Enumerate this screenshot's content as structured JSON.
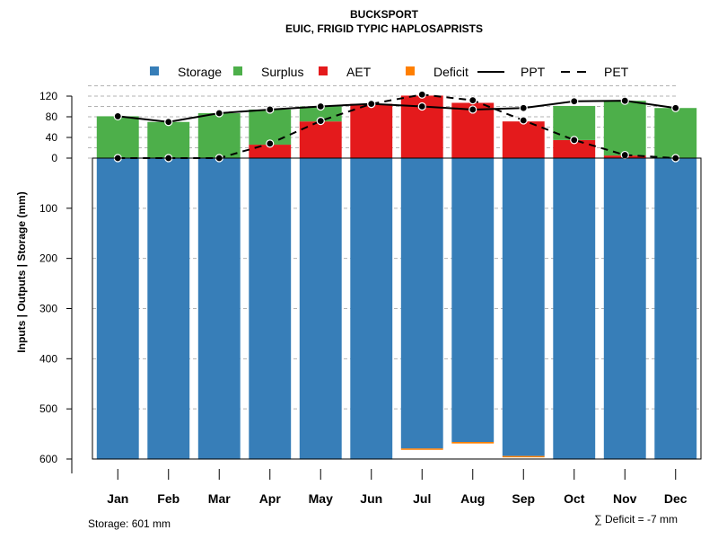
{
  "chart_data": {
    "type": "bar",
    "title": "BUCKSPORT",
    "subtitle": "EUIC, FRIGID TYPIC HAPLOSAPRISTS",
    "ylabel": "Inputs | Outputs | Storage    (mm)",
    "categories": [
      "Jan",
      "Feb",
      "Mar",
      "Apr",
      "May",
      "Jun",
      "Jul",
      "Aug",
      "Sep",
      "Oct",
      "Nov",
      "Dec"
    ],
    "ylim": [
      -600,
      140
    ],
    "yticks_upper": [
      {
        "value": 0,
        "label": "0"
      },
      {
        "value": 40,
        "label": "40"
      },
      {
        "value": 80,
        "label": "80"
      },
      {
        "value": 120,
        "label": "120"
      }
    ],
    "yticks_lower": [
      {
        "value": 100,
        "label": "100"
      },
      {
        "value": 200,
        "label": "200"
      },
      {
        "value": 300,
        "label": "300"
      },
      {
        "value": 400,
        "label": "400"
      },
      {
        "value": 500,
        "label": "500"
      },
      {
        "value": 600,
        "label": "600"
      }
    ],
    "series": [
      {
        "name": "Storage",
        "color": "#377eb8",
        "values": [
          601,
          601,
          601,
          601,
          601,
          601,
          579,
          566,
          594,
          601,
          601,
          601
        ]
      },
      {
        "name": "Surplus",
        "color": "#4daf4a",
        "values": [
          81,
          70,
          87,
          68,
          29,
          0,
          0,
          0,
          0,
          66,
          106,
          97
        ]
      },
      {
        "name": "AET",
        "color": "#e41a1c",
        "values": [
          0,
          0,
          0,
          26,
          71,
          105,
          121,
          107,
          71,
          35,
          5,
          0
        ]
      },
      {
        "name": "Deficit",
        "color": "#ff7f00",
        "values": [
          0,
          0,
          0,
          0,
          0,
          0,
          2,
          3,
          2,
          0,
          0,
          0
        ]
      },
      {
        "name": "PPT",
        "color": "#000000",
        "style": "solid",
        "values": [
          81,
          70,
          87,
          94,
          100,
          105,
          100,
          94,
          97,
          110,
          111,
          97
        ]
      },
      {
        "name": "PET",
        "color": "#000000",
        "style": "dashed",
        "values": [
          0,
          0,
          0,
          28,
          72,
          105,
          123,
          112,
          73,
          35,
          6,
          0
        ]
      }
    ],
    "legend": [
      "Storage",
      "Surplus",
      "AET",
      "Deficit",
      "PPT",
      "PET"
    ],
    "legend_position": "top",
    "footer_left": "Storage: 601 mm",
    "footer_right": "∑ Deficit = -7 mm"
  }
}
